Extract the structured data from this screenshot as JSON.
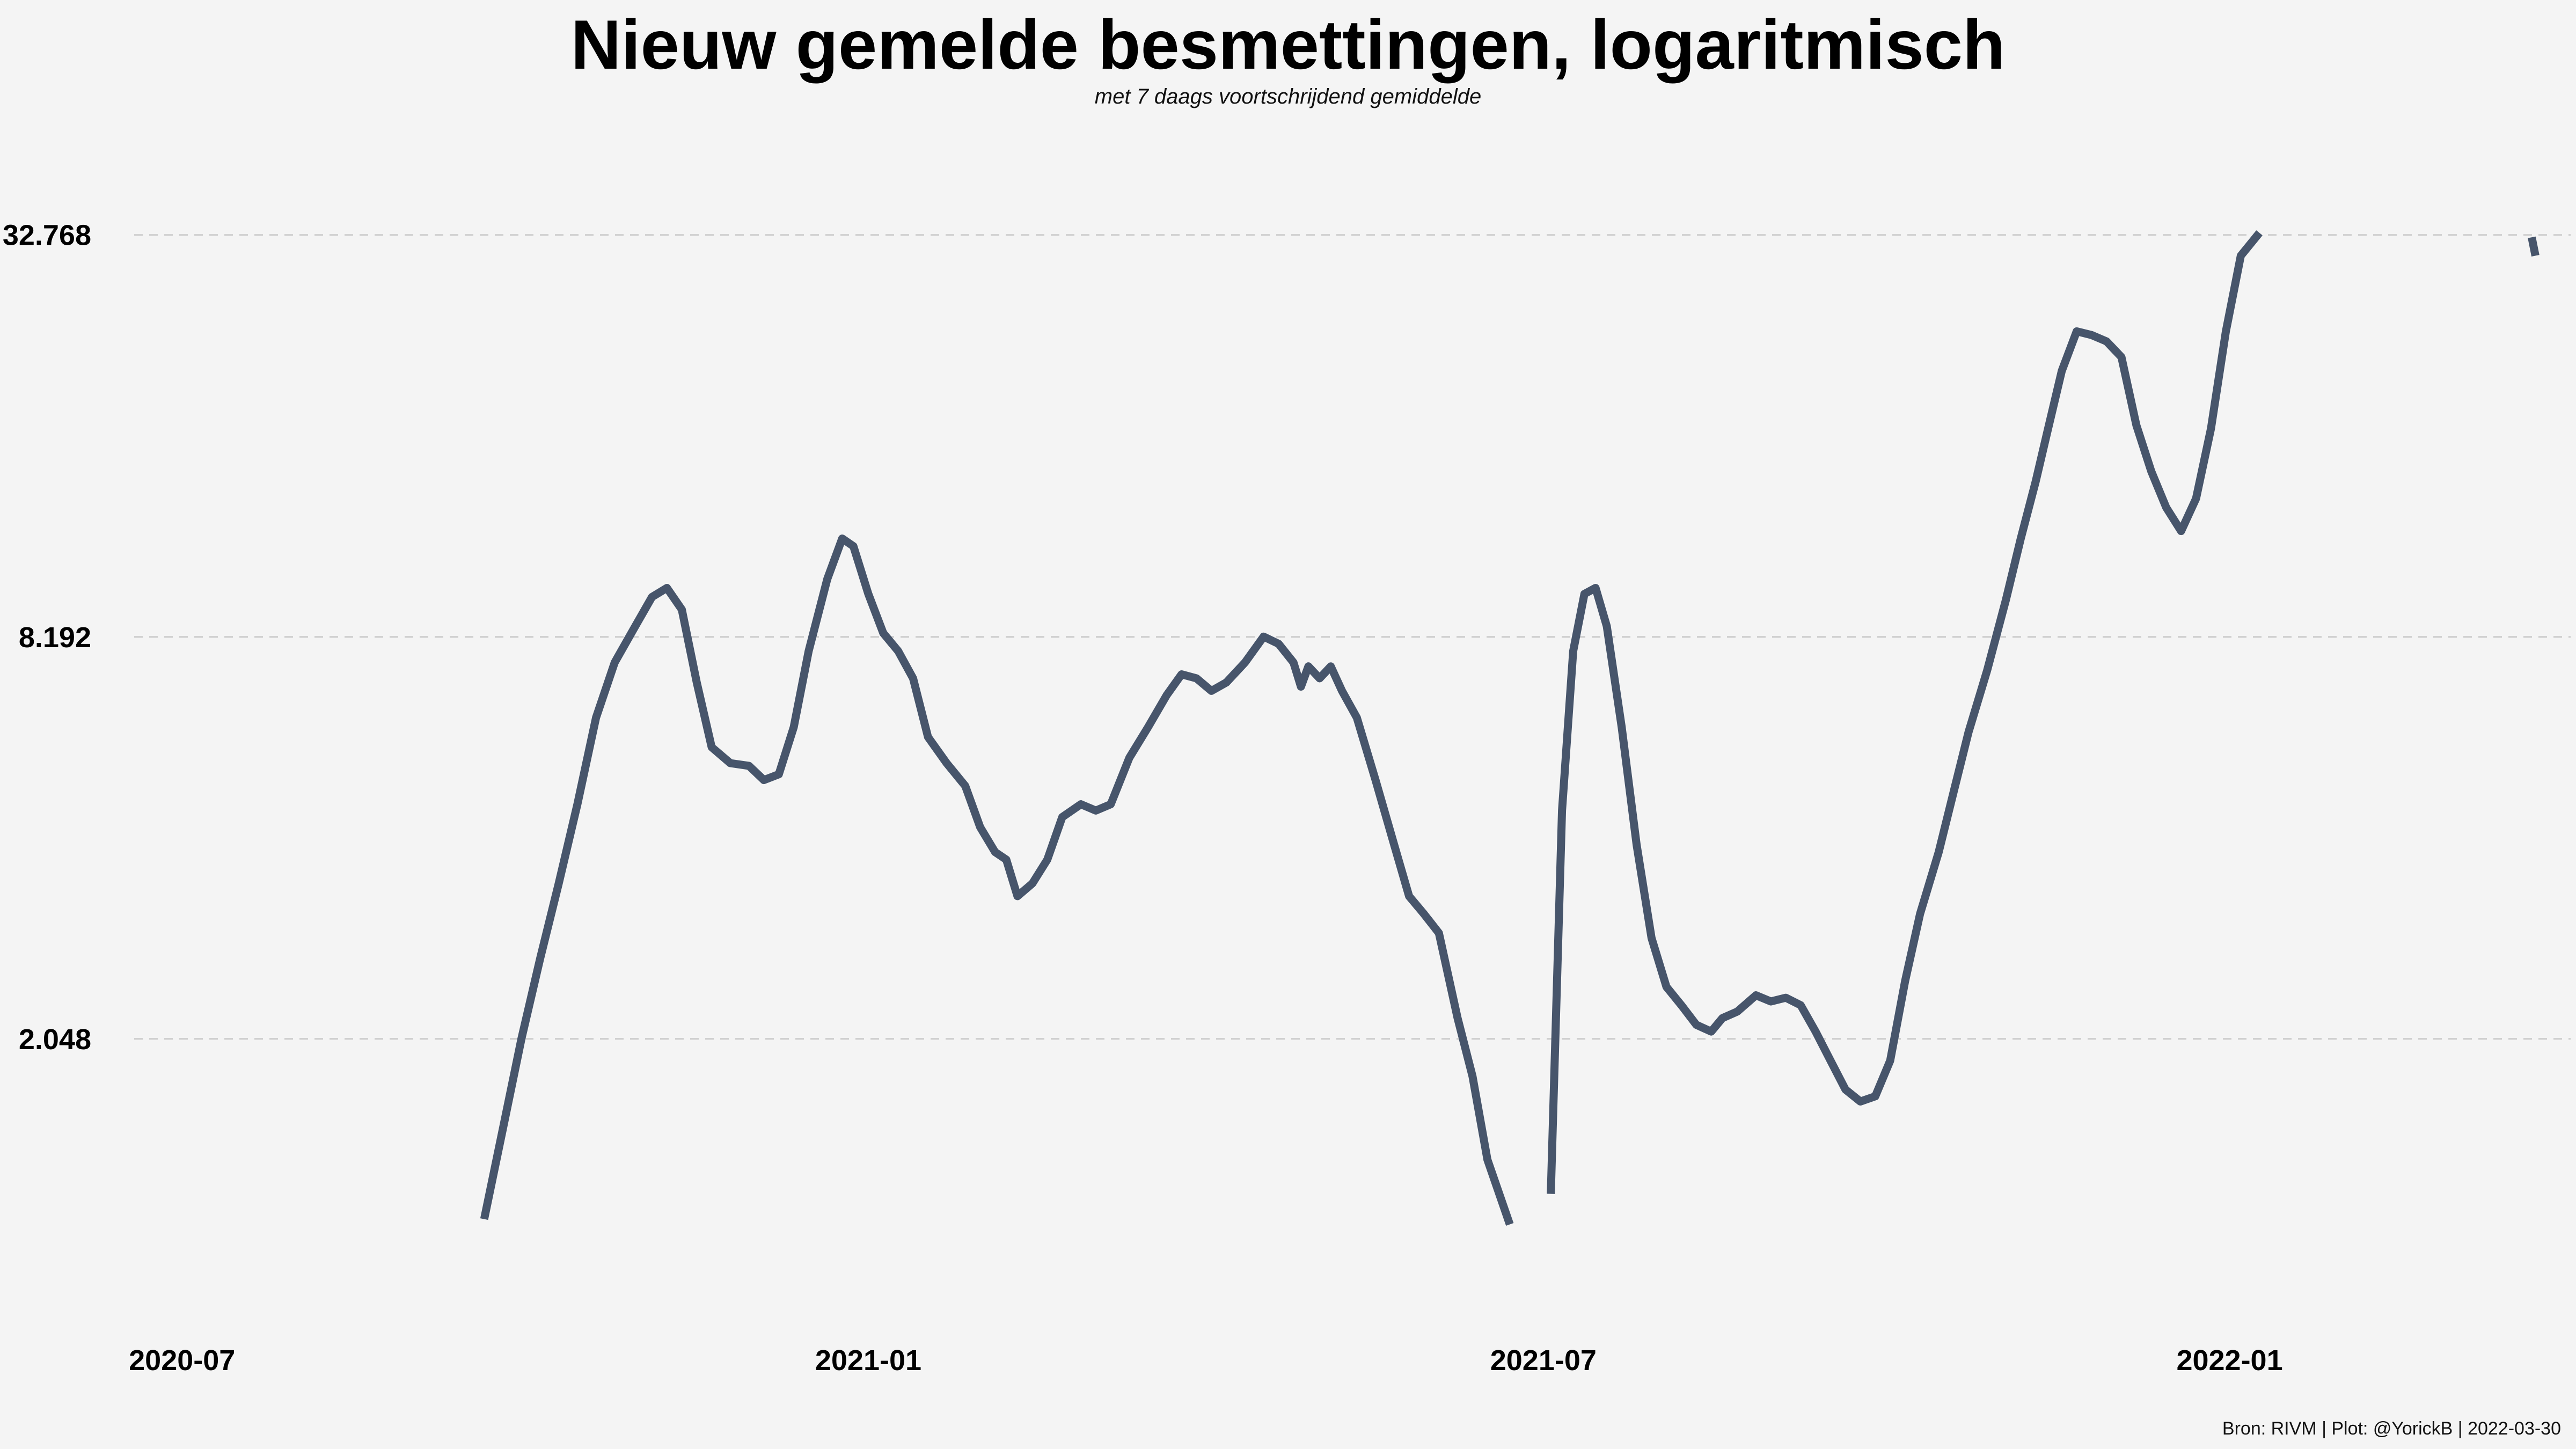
{
  "chart_data": {
    "type": "line",
    "title": "Nieuw gemelde besmettingen, logaritmisch",
    "subtitle": "met 7 daags voortschrijdend gemiddelde",
    "xlabel": "",
    "ylabel": "",
    "y_scale": "log2",
    "ylim": [
      900,
      40000
    ],
    "xlim": [
      "2020-06-16",
      "2022-04-01"
    ],
    "y_ticks": [
      {
        "value": 2048,
        "label": "2.048"
      },
      {
        "value": 8192,
        "label": "8.192"
      },
      {
        "value": 32768,
        "label": "32.768"
      }
    ],
    "x_ticks": [
      {
        "value": "2020-07-01",
        "label": "2020-07"
      },
      {
        "value": "2021-01-01",
        "label": "2021-01"
      },
      {
        "value": "2021-07-01",
        "label": "2021-07"
      },
      {
        "value": "2022-01-01",
        "label": "2022-01"
      }
    ],
    "grid": "horizontal dashed",
    "line_color": "#47556b",
    "series": [
      {
        "segments": [
          [
            [
              "2020-09-20",
              1100
            ],
            [
              "2020-09-25",
              1500
            ],
            [
              "2020-09-30",
              2050
            ],
            [
              "2020-10-05",
              2700
            ],
            [
              "2020-10-10",
              3500
            ],
            [
              "2020-10-15",
              4600
            ],
            [
              "2020-10-20",
              6200
            ],
            [
              "2020-10-25",
              7500
            ],
            [
              "2020-10-30",
              8400
            ],
            [
              "2020-11-04",
              9400
            ],
            [
              "2020-11-08",
              9700
            ],
            [
              "2020-11-12",
              9000
            ],
            [
              "2020-11-16",
              7000
            ],
            [
              "2020-11-20",
              5600
            ],
            [
              "2020-11-25",
              5300
            ],
            [
              "2020-11-30",
              5250
            ],
            [
              "2020-12-04",
              5000
            ],
            [
              "2020-12-08",
              5100
            ],
            [
              "2020-12-12",
              6000
            ],
            [
              "2020-12-16",
              7800
            ],
            [
              "2020-12-21",
              10000
            ],
            [
              "2020-12-25",
              11500
            ],
            [
              "2020-12-28",
              11200
            ],
            [
              "2021-01-01",
              9500
            ],
            [
              "2021-01-05",
              8300
            ],
            [
              "2021-01-09",
              7800
            ],
            [
              "2021-01-13",
              7100
            ],
            [
              "2021-01-17",
              5800
            ],
            [
              "2021-01-22",
              5300
            ],
            [
              "2021-01-27",
              4900
            ],
            [
              "2021-01-31",
              4250
            ],
            [
              "2021-02-04",
              3900
            ],
            [
              "2021-02-07",
              3800
            ],
            [
              "2021-02-10",
              3350
            ],
            [
              "2021-02-14",
              3500
            ],
            [
              "2021-02-18",
              3800
            ],
            [
              "2021-02-22",
              4400
            ],
            [
              "2021-02-27",
              4600
            ],
            [
              "2021-03-03",
              4500
            ],
            [
              "2021-03-07",
              4600
            ],
            [
              "2021-03-12",
              5400
            ],
            [
              "2021-03-17",
              6000
            ],
            [
              "2021-03-22",
              6700
            ],
            [
              "2021-03-26",
              7200
            ],
            [
              "2021-03-30",
              7100
            ],
            [
              "2021-04-03",
              6800
            ],
            [
              "2021-04-07",
              7000
            ],
            [
              "2021-04-12",
              7500
            ],
            [
              "2021-04-17",
              8200
            ],
            [
              "2021-04-21",
              8000
            ],
            [
              "2021-04-25",
              7500
            ],
            [
              "2021-04-27",
              6900
            ],
            [
              "2021-04-29",
              7400
            ],
            [
              "2021-05-02",
              7100
            ],
            [
              "2021-05-05",
              7400
            ],
            [
              "2021-05-08",
              6800
            ],
            [
              "2021-05-12",
              6200
            ],
            [
              "2021-05-17",
              5000
            ],
            [
              "2021-05-22",
              4000
            ],
            [
              "2021-05-26",
              3350
            ],
            [
              "2021-05-30",
              3150
            ],
            [
              "2021-06-03",
              2950
            ],
            [
              "2021-06-08",
              2200
            ],
            [
              "2021-06-12",
              1800
            ],
            [
              "2021-06-16",
              1350
            ],
            [
              "2021-06-22",
              1080
            ]
          ],
          [
            [
              "2021-07-03",
              1200
            ],
            [
              "2021-07-06",
              4500
            ],
            [
              "2021-07-09",
              7800
            ],
            [
              "2021-07-12",
              9500
            ],
            [
              "2021-07-15",
              9700
            ],
            [
              "2021-07-18",
              8500
            ],
            [
              "2021-07-22",
              6000
            ],
            [
              "2021-07-26",
              4000
            ],
            [
              "2021-07-30",
              2900
            ],
            [
              "2021-08-03",
              2450
            ],
            [
              "2021-08-07",
              2300
            ],
            [
              "2021-08-11",
              2150
            ],
            [
              "2021-08-15",
              2100
            ],
            [
              "2021-08-18",
              2200
            ],
            [
              "2021-08-22",
              2250
            ],
            [
              "2021-08-27",
              2380
            ],
            [
              "2021-08-31",
              2330
            ],
            [
              "2021-09-04",
              2360
            ],
            [
              "2021-09-08",
              2300
            ],
            [
              "2021-09-12",
              2100
            ],
            [
              "2021-09-16",
              1900
            ],
            [
              "2021-09-20",
              1720
            ],
            [
              "2021-09-24",
              1650
            ],
            [
              "2021-09-28",
              1680
            ],
            [
              "2021-10-02",
              1900
            ],
            [
              "2021-10-06",
              2500
            ],
            [
              "2021-10-10",
              3150
            ],
            [
              "2021-10-15",
              3900
            ],
            [
              "2021-10-19",
              4800
            ],
            [
              "2021-10-23",
              5900
            ],
            [
              "2021-10-28",
              7300
            ],
            [
              "2021-11-02",
              9300
            ],
            [
              "2021-11-06",
              11500
            ],
            [
              "2021-11-10",
              14000
            ],
            [
              "2021-11-13",
              16500
            ],
            [
              "2021-11-17",
              20500
            ],
            [
              "2021-11-21",
              23500
            ],
            [
              "2021-11-25",
              23200
            ],
            [
              "2021-11-29",
              22700
            ],
            [
              "2021-12-03",
              21500
            ],
            [
              "2021-12-07",
              17000
            ],
            [
              "2021-12-11",
              14500
            ],
            [
              "2021-12-15",
              12800
            ],
            [
              "2021-12-19",
              11800
            ],
            [
              "2021-12-23",
              13200
            ],
            [
              "2021-12-27",
              16800
            ],
            [
              "2021-12-31",
              23500
            ],
            [
              "2022-01-04",
              30500
            ],
            [
              "2022-01-09",
              33000
            ]
          ],
          [
            [
              "2022-03-23",
              32500
            ],
            [
              "2022-03-24",
              30500
            ]
          ]
        ]
      }
    ]
  },
  "caption": "Bron: RIVM | Plot: @YorickB  |  2022-03-30"
}
